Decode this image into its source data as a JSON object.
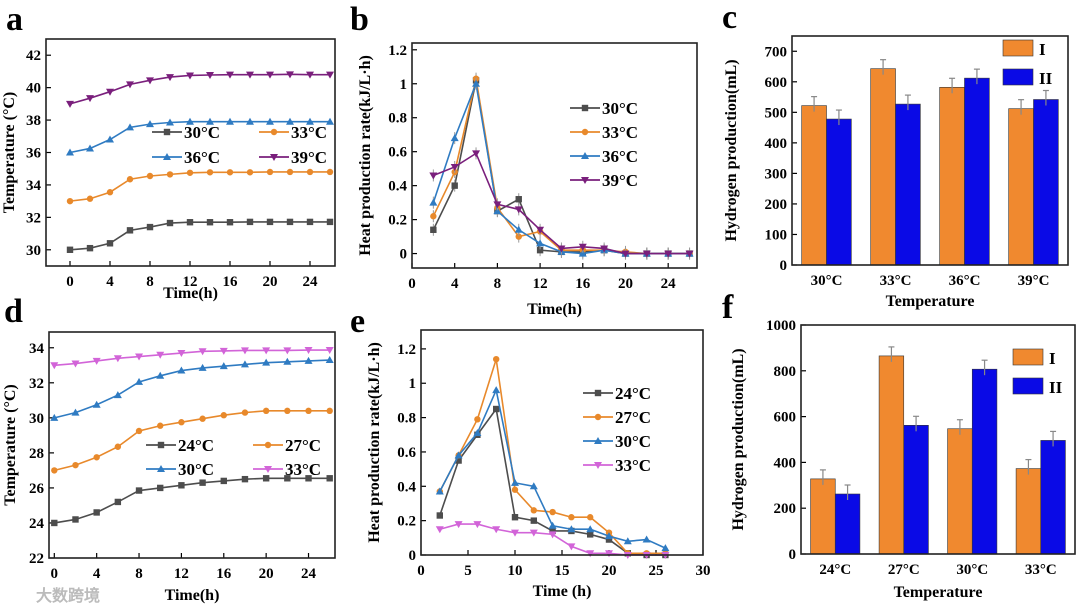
{
  "colors": {
    "gray": "#4d4d4d",
    "orange": "#e8892b",
    "blue": "#2f7bc2",
    "purple": "#7a1f7c",
    "magenta": "#d264d8",
    "barI": "#f0892f",
    "barII": "#0a0ae6"
  },
  "watermark": "大数跨境",
  "chart_data": [
    {
      "panel": "a",
      "type": "line",
      "xlabel": "Time(h)",
      "ylabel": "Temperature (°C)",
      "xlim": [
        -2.4,
        26.5
      ],
      "ylim": [
        29,
        43
      ],
      "xticks": [
        0,
        4,
        8,
        12,
        16,
        20,
        24
      ],
      "yticks": [
        30,
        32,
        34,
        36,
        38,
        40,
        42
      ],
      "x": [
        0,
        2,
        4,
        6,
        8,
        10,
        12,
        14,
        16,
        18,
        20,
        22,
        24,
        26
      ],
      "series": [
        {
          "name": "30°C",
          "color": "gray",
          "marker": "square",
          "values": [
            30,
            30.1,
            30.4,
            31.2,
            31.4,
            31.65,
            31.7,
            31.7,
            31.7,
            31.72,
            31.72,
            31.72,
            31.72,
            31.72
          ]
        },
        {
          "name": "33°C",
          "color": "orange",
          "marker": "circle",
          "values": [
            33,
            33.15,
            33.55,
            34.35,
            34.55,
            34.65,
            34.75,
            34.78,
            34.78,
            34.78,
            34.8,
            34.8,
            34.8,
            34.8
          ]
        },
        {
          "name": "36°C",
          "color": "blue",
          "marker": "triangle-up",
          "values": [
            36,
            36.25,
            36.8,
            37.55,
            37.75,
            37.85,
            37.9,
            37.9,
            37.9,
            37.9,
            37.9,
            37.9,
            37.9,
            37.9
          ]
        },
        {
          "name": "39°C",
          "color": "purple",
          "marker": "triangle-down",
          "values": [
            39,
            39.35,
            39.75,
            40.2,
            40.45,
            40.65,
            40.75,
            40.78,
            40.8,
            40.8,
            40.8,
            40.82,
            40.8,
            40.8
          ]
        }
      ]
    },
    {
      "panel": "b",
      "type": "line",
      "xlabel": "Time(h)",
      "ylabel": "Heat production rate(kJ/L·h)",
      "xlim": [
        0,
        26.7
      ],
      "ylim": [
        -0.085,
        1.24
      ],
      "xticks": [
        0,
        4,
        8,
        12,
        16,
        20,
        24
      ],
      "yticks": [
        0.0,
        0.2,
        0.4,
        0.6,
        0.8,
        1.0,
        1.2
      ],
      "error_bars": true,
      "x": [
        2,
        4,
        6,
        8,
        10,
        12,
        14,
        16,
        18,
        20,
        22,
        24,
        26
      ],
      "series": [
        {
          "name": "30°C",
          "color": "gray",
          "marker": "square",
          "values": [
            0.14,
            0.4,
            1.02,
            0.25,
            0.32,
            0.02,
            0.01,
            0.01,
            0.02,
            0.0,
            0,
            0,
            0
          ]
        },
        {
          "name": "33°C",
          "color": "orange",
          "marker": "circle",
          "values": [
            0.22,
            0.48,
            1.03,
            0.27,
            0.1,
            0.13,
            0.02,
            0.02,
            0.02,
            0.01,
            0,
            0,
            0
          ]
        },
        {
          "name": "36°C",
          "color": "blue",
          "marker": "triangle-up",
          "values": [
            0.3,
            0.68,
            1.0,
            0.25,
            0.14,
            0.06,
            0.01,
            0.0,
            0.02,
            0.0,
            0,
            0,
            0
          ]
        },
        {
          "name": "39°C",
          "color": "purple",
          "marker": "triangle-down",
          "values": [
            0.46,
            0.51,
            0.59,
            0.29,
            0.26,
            0.14,
            0.03,
            0.04,
            0.03,
            0.0,
            0,
            0,
            0
          ]
        }
      ]
    },
    {
      "panel": "c",
      "type": "bar",
      "xlabel": "Temperature",
      "ylabel": "Hydrogen production(mL)",
      "ylim": [
        0,
        750
      ],
      "yticks": [
        0,
        100,
        200,
        300,
        400,
        500,
        600,
        700
      ],
      "categories": [
        "30°C",
        "33°C",
        "36°C",
        "39°C"
      ],
      "series": [
        {
          "name": "I",
          "color": "barI",
          "values": [
            522,
            643,
            582,
            512
          ]
        },
        {
          "name": "II",
          "color": "barII",
          "values": [
            478,
            527,
            612,
            542
          ]
        }
      ]
    },
    {
      "panel": "d",
      "type": "line",
      "xlabel": "Time(h)",
      "ylabel": "Temperature (°C)",
      "xlim": [
        -0.5,
        26.5
      ],
      "ylim": [
        22,
        34.9
      ],
      "xticks": [
        0,
        4,
        8,
        12,
        16,
        20,
        24
      ],
      "yticks": [
        22,
        24,
        26,
        28,
        30,
        32,
        34
      ],
      "x": [
        0,
        2,
        4,
        6,
        8,
        10,
        12,
        14,
        16,
        18,
        20,
        22,
        24,
        26
      ],
      "series": [
        {
          "name": "24°C",
          "color": "gray",
          "marker": "square",
          "values": [
            24,
            24.2,
            24.6,
            25.2,
            25.85,
            26.0,
            26.15,
            26.3,
            26.4,
            26.5,
            26.55,
            26.55,
            26.55,
            26.55
          ]
        },
        {
          "name": "27°C",
          "color": "orange",
          "marker": "circle",
          "values": [
            27,
            27.3,
            27.75,
            28.35,
            29.25,
            29.55,
            29.75,
            29.95,
            30.15,
            30.3,
            30.4,
            30.4,
            30.4,
            30.4
          ]
        },
        {
          "name": "30°C",
          "color": "blue",
          "marker": "triangle-up",
          "values": [
            30,
            30.3,
            30.75,
            31.3,
            32.05,
            32.4,
            32.7,
            32.85,
            32.95,
            33.05,
            33.15,
            33.2,
            33.25,
            33.3
          ]
        },
        {
          "name": "33°C",
          "color": "magenta",
          "marker": "triangle-down",
          "values": [
            33,
            33.1,
            33.25,
            33.4,
            33.5,
            33.6,
            33.7,
            33.8,
            33.82,
            33.85,
            33.85,
            33.85,
            33.87,
            33.87
          ]
        }
      ]
    },
    {
      "panel": "e",
      "type": "line",
      "xlabel": "Time (h)",
      "ylabel": "Heat production rate(kJ/L·h)",
      "xlim": [
        0,
        30
      ],
      "ylim": [
        0,
        1.31
      ],
      "xticks": [
        0,
        5,
        10,
        15,
        20,
        25,
        30
      ],
      "yticks": [
        0.0,
        0.2,
        0.4,
        0.6,
        0.8,
        1.0,
        1.2
      ],
      "x": [
        2,
        4,
        6,
        8,
        10,
        12,
        14,
        16,
        18,
        20,
        22,
        24,
        26
      ],
      "series": [
        {
          "name": "24°C",
          "color": "gray",
          "marker": "square",
          "values": [
            0.23,
            0.55,
            0.7,
            0.85,
            0.22,
            0.2,
            0.14,
            0.14,
            0.12,
            0.09,
            0.01,
            0.0,
            0.0
          ]
        },
        {
          "name": "27°C",
          "color": "orange",
          "marker": "circle",
          "values": [
            0.37,
            0.58,
            0.79,
            1.14,
            0.38,
            0.26,
            0.25,
            0.22,
            0.22,
            0.13,
            0.01,
            0.01,
            0.01
          ]
        },
        {
          "name": "30°C",
          "color": "blue",
          "marker": "triangle-up",
          "values": [
            0.37,
            0.58,
            0.71,
            0.96,
            0.42,
            0.4,
            0.17,
            0.15,
            0.15,
            0.11,
            0.08,
            0.09,
            0.04
          ]
        },
        {
          "name": "33°C",
          "color": "magenta",
          "marker": "triangle-down",
          "values": [
            0.15,
            0.18,
            0.18,
            0.15,
            0.13,
            0.13,
            0.12,
            0.05,
            0.01,
            0.01,
            0.0,
            0.0,
            0.0
          ]
        }
      ]
    },
    {
      "panel": "f",
      "type": "bar",
      "xlabel": "Temperature",
      "ylabel": "Hydrogen production(mL)",
      "ylim": [
        0,
        1000
      ],
      "yticks": [
        0,
        200,
        400,
        600,
        800,
        1000
      ],
      "categories": [
        "24°C",
        "27°C",
        "30°C",
        "33°C"
      ],
      "series": [
        {
          "name": "I",
          "color": "barI",
          "values": [
            328,
            865,
            547,
            373
          ]
        },
        {
          "name": "II",
          "color": "barII",
          "values": [
            262,
            562,
            807,
            496
          ]
        }
      ]
    }
  ]
}
